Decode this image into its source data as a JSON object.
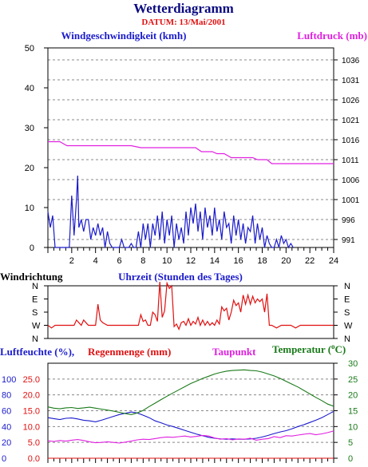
{
  "title": "Wetterdiagramm",
  "subtitle": "DATUM: 13/Mai/2001",
  "colors": {
    "wind": "#1a1acc",
    "pressure": "#e020e0",
    "direction": "#e01010",
    "humidity": "#1a1acc",
    "rain": "#e01010",
    "dewpoint": "#e020e0",
    "temperature": "#1a7a1a",
    "grid": "#888888",
    "title": "#0a0a80"
  },
  "chart_data": [
    {
      "type": "line",
      "title": "",
      "xlabel": "Uhrzeit (Stunden des Tages)",
      "left_label": "Windgeschwindigkeit (kmh)",
      "right_label": "Luftdruck (mb)",
      "xlim": [
        0,
        24
      ],
      "x_ticks": [
        2,
        4,
        6,
        8,
        10,
        12,
        14,
        16,
        18,
        20,
        22,
        24
      ],
      "ylim_left": [
        0,
        50
      ],
      "y_ticks_left": [
        0,
        10,
        20,
        30,
        40,
        50
      ],
      "ylim_right": [
        989,
        1039
      ],
      "y_ticks_right": [
        991,
        996,
        1001,
        1006,
        1011,
        1016,
        1021,
        1026,
        1031,
        1036
      ],
      "grid": true,
      "series": [
        {
          "name": "Windgeschwindigkeit (kmh)",
          "axis": "left",
          "x": [
            0,
            0.2,
            0.4,
            0.6,
            0.8,
            1.0,
            1.2,
            1.4,
            1.6,
            1.8,
            2.0,
            2.2,
            2.4,
            2.5,
            2.6,
            2.8,
            3.0,
            3.2,
            3.4,
            3.6,
            3.8,
            4.0,
            4.2,
            4.4,
            4.6,
            4.8,
            5.0,
            5.2,
            5.4,
            5.6,
            5.8,
            6.0,
            6.2,
            6.4,
            6.6,
            6.8,
            7.0,
            7.2,
            7.4,
            7.6,
            7.8,
            8.0,
            8.2,
            8.4,
            8.6,
            8.8,
            9.0,
            9.2,
            9.4,
            9.6,
            9.8,
            10.0,
            10.2,
            10.4,
            10.6,
            10.8,
            11.0,
            11.2,
            11.4,
            11.6,
            11.8,
            12.0,
            12.2,
            12.4,
            12.6,
            12.8,
            13.0,
            13.2,
            13.4,
            13.6,
            13.8,
            14.0,
            14.2,
            14.4,
            14.6,
            14.8,
            15.0,
            15.2,
            15.4,
            15.6,
            15.8,
            16.0,
            16.2,
            16.4,
            16.6,
            16.8,
            17.0,
            17.2,
            17.4,
            17.6,
            17.8,
            18.0,
            18.2,
            18.4,
            18.6,
            18.8,
            19.0,
            19.2,
            19.4,
            19.6,
            19.8,
            20.0,
            20.2,
            20.4,
            20.6
          ],
          "y": [
            9,
            5,
            8,
            0,
            0,
            0,
            0,
            0,
            0,
            0,
            13,
            3,
            12,
            18,
            5,
            7,
            4,
            7,
            7,
            2,
            5,
            3,
            6,
            3,
            5,
            0,
            4,
            1,
            0,
            0,
            0,
            0,
            2,
            0,
            0,
            0,
            1,
            0,
            0,
            4,
            0,
            6,
            2,
            6,
            0,
            6,
            3,
            8,
            2,
            9,
            1,
            7,
            3,
            8,
            0,
            6,
            2,
            5,
            1,
            9,
            3,
            10,
            6,
            11,
            4,
            9,
            2,
            10,
            5,
            8,
            3,
            10,
            4,
            7,
            2,
            9,
            5,
            6,
            1,
            8,
            3,
            7,
            2,
            6,
            1,
            5,
            4,
            8,
            1,
            6,
            2,
            5,
            0,
            3,
            1,
            0,
            0,
            2,
            0,
            3,
            1,
            2,
            0,
            1,
            0
          ]
        },
        {
          "name": "Luftdruck (mb)",
          "axis": "right",
          "x": [
            0,
            1.0,
            1.6,
            3.0,
            7.0,
            7.8,
            12.4,
            12.9,
            13.8,
            14.2,
            14.8,
            15.4,
            17.2,
            17.6,
            18.4,
            18.8,
            22.4,
            24
          ],
          "y": [
            1015.5,
            1015.5,
            1014.5,
            1014.5,
            1014.5,
            1014.0,
            1014.0,
            1013.0,
            1013.0,
            1012.5,
            1012.5,
            1011.5,
            1011.5,
            1011.0,
            1011.0,
            1010.0,
            1010.0,
            1010.0
          ]
        }
      ]
    },
    {
      "type": "line",
      "title": "Windrichtung",
      "xlim": [
        0,
        24
      ],
      "y_categories": [
        "N",
        "W",
        "S",
        "E",
        "N"
      ],
      "series": [
        {
          "name": "Windrichtung",
          "x": [
            0,
            0.3,
            0.6,
            1.0,
            1.4,
            1.8,
            2.2,
            2.4,
            2.6,
            2.8,
            3.0,
            3.2,
            3.4,
            3.6,
            3.8,
            4.0,
            4.2,
            4.4,
            4.6,
            5.0,
            5.4,
            5.8,
            6.2,
            6.6,
            7.0,
            7.4,
            7.6,
            7.8,
            8.0,
            8.2,
            8.4,
            8.6,
            8.8,
            9.0,
            9.2,
            9.4,
            9.6,
            9.8,
            10.0,
            10.2,
            10.4,
            10.6,
            10.8,
            11.0,
            11.2,
            11.4,
            11.6,
            11.8,
            12.0,
            12.2,
            12.4,
            12.6,
            12.8,
            13.0,
            13.2,
            13.4,
            13.6,
            13.8,
            14.0,
            14.2,
            14.4,
            14.6,
            14.8,
            15.0,
            15.2,
            15.4,
            15.6,
            15.8,
            16.0,
            16.2,
            16.4,
            16.6,
            16.8,
            17.0,
            17.2,
            17.4,
            17.6,
            17.8,
            18.0,
            18.2,
            18.4,
            18.6,
            18.8,
            19.2,
            19.6,
            20.0,
            20.4,
            20.8,
            21.2,
            21.6,
            22.0,
            22.4,
            22.8,
            23.2,
            23.6,
            24.0
          ],
          "y": [
            1.0,
            0.8,
            1.0,
            1.0,
            1.0,
            1.0,
            1.0,
            1.4,
            1.2,
            1.0,
            1.4,
            1.2,
            1.0,
            1.0,
            1.0,
            1.0,
            2.6,
            1.4,
            1.2,
            1.0,
            1.0,
            1.0,
            1.0,
            1.0,
            1.0,
            1.0,
            1.0,
            1.8,
            1.3,
            1.4,
            1.0,
            1.0,
            2.0,
            1.8,
            1.3,
            4.3,
            1.6,
            2.1,
            4.2,
            3.8,
            4.0,
            0.9,
            1.1,
            0.7,
            1.2,
            1.3,
            1.0,
            1.5,
            1.0,
            1.3,
            1.1,
            1.6,
            1.0,
            1.4,
            1.0,
            1.3,
            1.0,
            1.2,
            1.0,
            1.4,
            1.1,
            2.4,
            2.1,
            2.3,
            1.4,
            2.0,
            2.9,
            2.5,
            2.7,
            2.0,
            3.3,
            2.6,
            3.3,
            2.6,
            3.2,
            2.7,
            3.0,
            2.8,
            3.0,
            2.0,
            3.4,
            1.0,
            1.0,
            0.8,
            1.0,
            1.0,
            1.0,
            0.8,
            1.0,
            1.0,
            1.0,
            1.0,
            1.0,
            1.0,
            1.0,
            1.0
          ]
        }
      ]
    },
    {
      "type": "line",
      "title": "",
      "xlim": [
        0,
        24
      ],
      "left_labels": [
        "Luftfeuchte (%),",
        "Regenmenge (mm)"
      ],
      "dewpoint_label": "Taupunkt",
      "temp_label": "Temperatur (",
      "temp_unit_sign": "o",
      "temp_unit_letter": "C)",
      "humidity_ticks": [
        0,
        20,
        40,
        60,
        80,
        100
      ],
      "rain_ticks": [
        "0.0",
        "5.0",
        "10.0",
        "15.0",
        "20.0",
        "25.0"
      ],
      "ylim_rain": [
        0,
        30
      ],
      "ylim_temp": [
        0,
        30
      ],
      "y_ticks_temp": [
        0,
        5,
        10,
        15,
        20,
        25,
        30
      ],
      "series": [
        {
          "name": "Luftfeuchte (%)",
          "scale": "rain_units",
          "x": [
            0,
            0.5,
            1,
            1.5,
            2,
            2.5,
            3,
            3.5,
            4,
            4.5,
            5,
            5.5,
            6,
            6.5,
            7,
            7.5,
            8,
            8.5,
            9,
            9.5,
            10,
            10.5,
            11,
            11.5,
            12,
            12.5,
            13,
            13.5,
            14,
            14.5,
            15,
            15.5,
            16,
            16.5,
            17,
            17.5,
            18,
            18.5,
            19,
            19.5,
            20,
            20.5,
            21,
            21.5,
            22,
            22.5,
            23,
            23.5,
            24
          ],
          "y": [
            12.8,
            12.5,
            12.2,
            12.6,
            12.7,
            12.4,
            12.0,
            11.8,
            11.5,
            12.0,
            12.6,
            13.2,
            13.8,
            14.2,
            14.6,
            14.3,
            13.6,
            12.8,
            11.8,
            11.2,
            10.5,
            10.0,
            9.4,
            8.8,
            8.2,
            7.6,
            7.1,
            6.6,
            6.3,
            6.1,
            6.0,
            6.1,
            6.0,
            6.0,
            6.1,
            6.3,
            6.7,
            7.2,
            7.8,
            8.3,
            8.7,
            9.3,
            10.0,
            10.6,
            11.3,
            12.0,
            12.8,
            13.8,
            14.8
          ]
        },
        {
          "name": "Regenmenge (mm)",
          "scale": "rain_units",
          "x": [
            0,
            24
          ],
          "y": [
            0,
            0
          ]
        },
        {
          "name": "Taupunkt",
          "scale": "temp_units",
          "x": [
            0,
            0.5,
            1,
            1.5,
            2,
            2.5,
            3,
            3.5,
            4,
            4.5,
            5,
            5.5,
            6,
            6.5,
            7,
            7.5,
            8,
            8.5,
            9,
            9.5,
            10,
            10.5,
            11,
            11.5,
            12,
            12.5,
            13,
            13.5,
            14,
            14.5,
            15,
            15.5,
            16,
            16.5,
            17,
            17.5,
            18,
            18.5,
            19,
            19.5,
            20,
            20.5,
            21,
            21.5,
            22,
            22.5,
            23,
            23.5,
            24
          ],
          "y": [
            5.5,
            5.3,
            5.6,
            5.4,
            5.7,
            5.9,
            5.6,
            5.2,
            4.9,
            5.0,
            5.2,
            5.0,
            4.8,
            5.1,
            5.4,
            5.8,
            6.0,
            5.9,
            6.2,
            6.5,
            6.7,
            6.6,
            6.8,
            7.0,
            6.7,
            6.9,
            7.2,
            7.0,
            6.4,
            6.0,
            6.2,
            5.8,
            6.1,
            6.0,
            6.3,
            5.7,
            6.0,
            6.2,
            6.8,
            6.5,
            7.1,
            7.0,
            7.3,
            7.6,
            7.8,
            7.4,
            7.7,
            8.1,
            8.6
          ]
        },
        {
          "name": "Temperatur (°C)",
          "scale": "temp_units",
          "x": [
            0,
            0.5,
            1,
            1.5,
            2,
            2.5,
            3,
            3.5,
            4,
            4.5,
            5,
            5.5,
            6,
            6.5,
            7,
            7.5,
            8,
            8.5,
            9,
            9.5,
            10,
            10.5,
            11,
            11.5,
            12,
            12.5,
            13,
            13.5,
            14,
            14.5,
            15,
            15.5,
            16,
            16.5,
            17,
            17.5,
            18,
            18.5,
            19,
            19.5,
            20,
            20.5,
            21,
            21.5,
            22,
            22.5,
            23,
            23.5,
            24
          ],
          "y": [
            16.2,
            15.8,
            15.6,
            15.9,
            16.0,
            15.7,
            15.9,
            16.1,
            15.8,
            15.5,
            15.2,
            14.9,
            14.5,
            14.1,
            13.8,
            14.3,
            15.1,
            16.3,
            17.4,
            18.5,
            19.6,
            20.6,
            21.6,
            22.6,
            23.6,
            24.4,
            25.2,
            25.9,
            26.6,
            27.1,
            27.5,
            27.7,
            27.8,
            27.9,
            27.7,
            27.6,
            27.2,
            26.6,
            26.0,
            25.2,
            24.3,
            23.4,
            22.5,
            21.4,
            20.3,
            19.2,
            18.2,
            17.1,
            16.4
          ]
        }
      ]
    }
  ]
}
